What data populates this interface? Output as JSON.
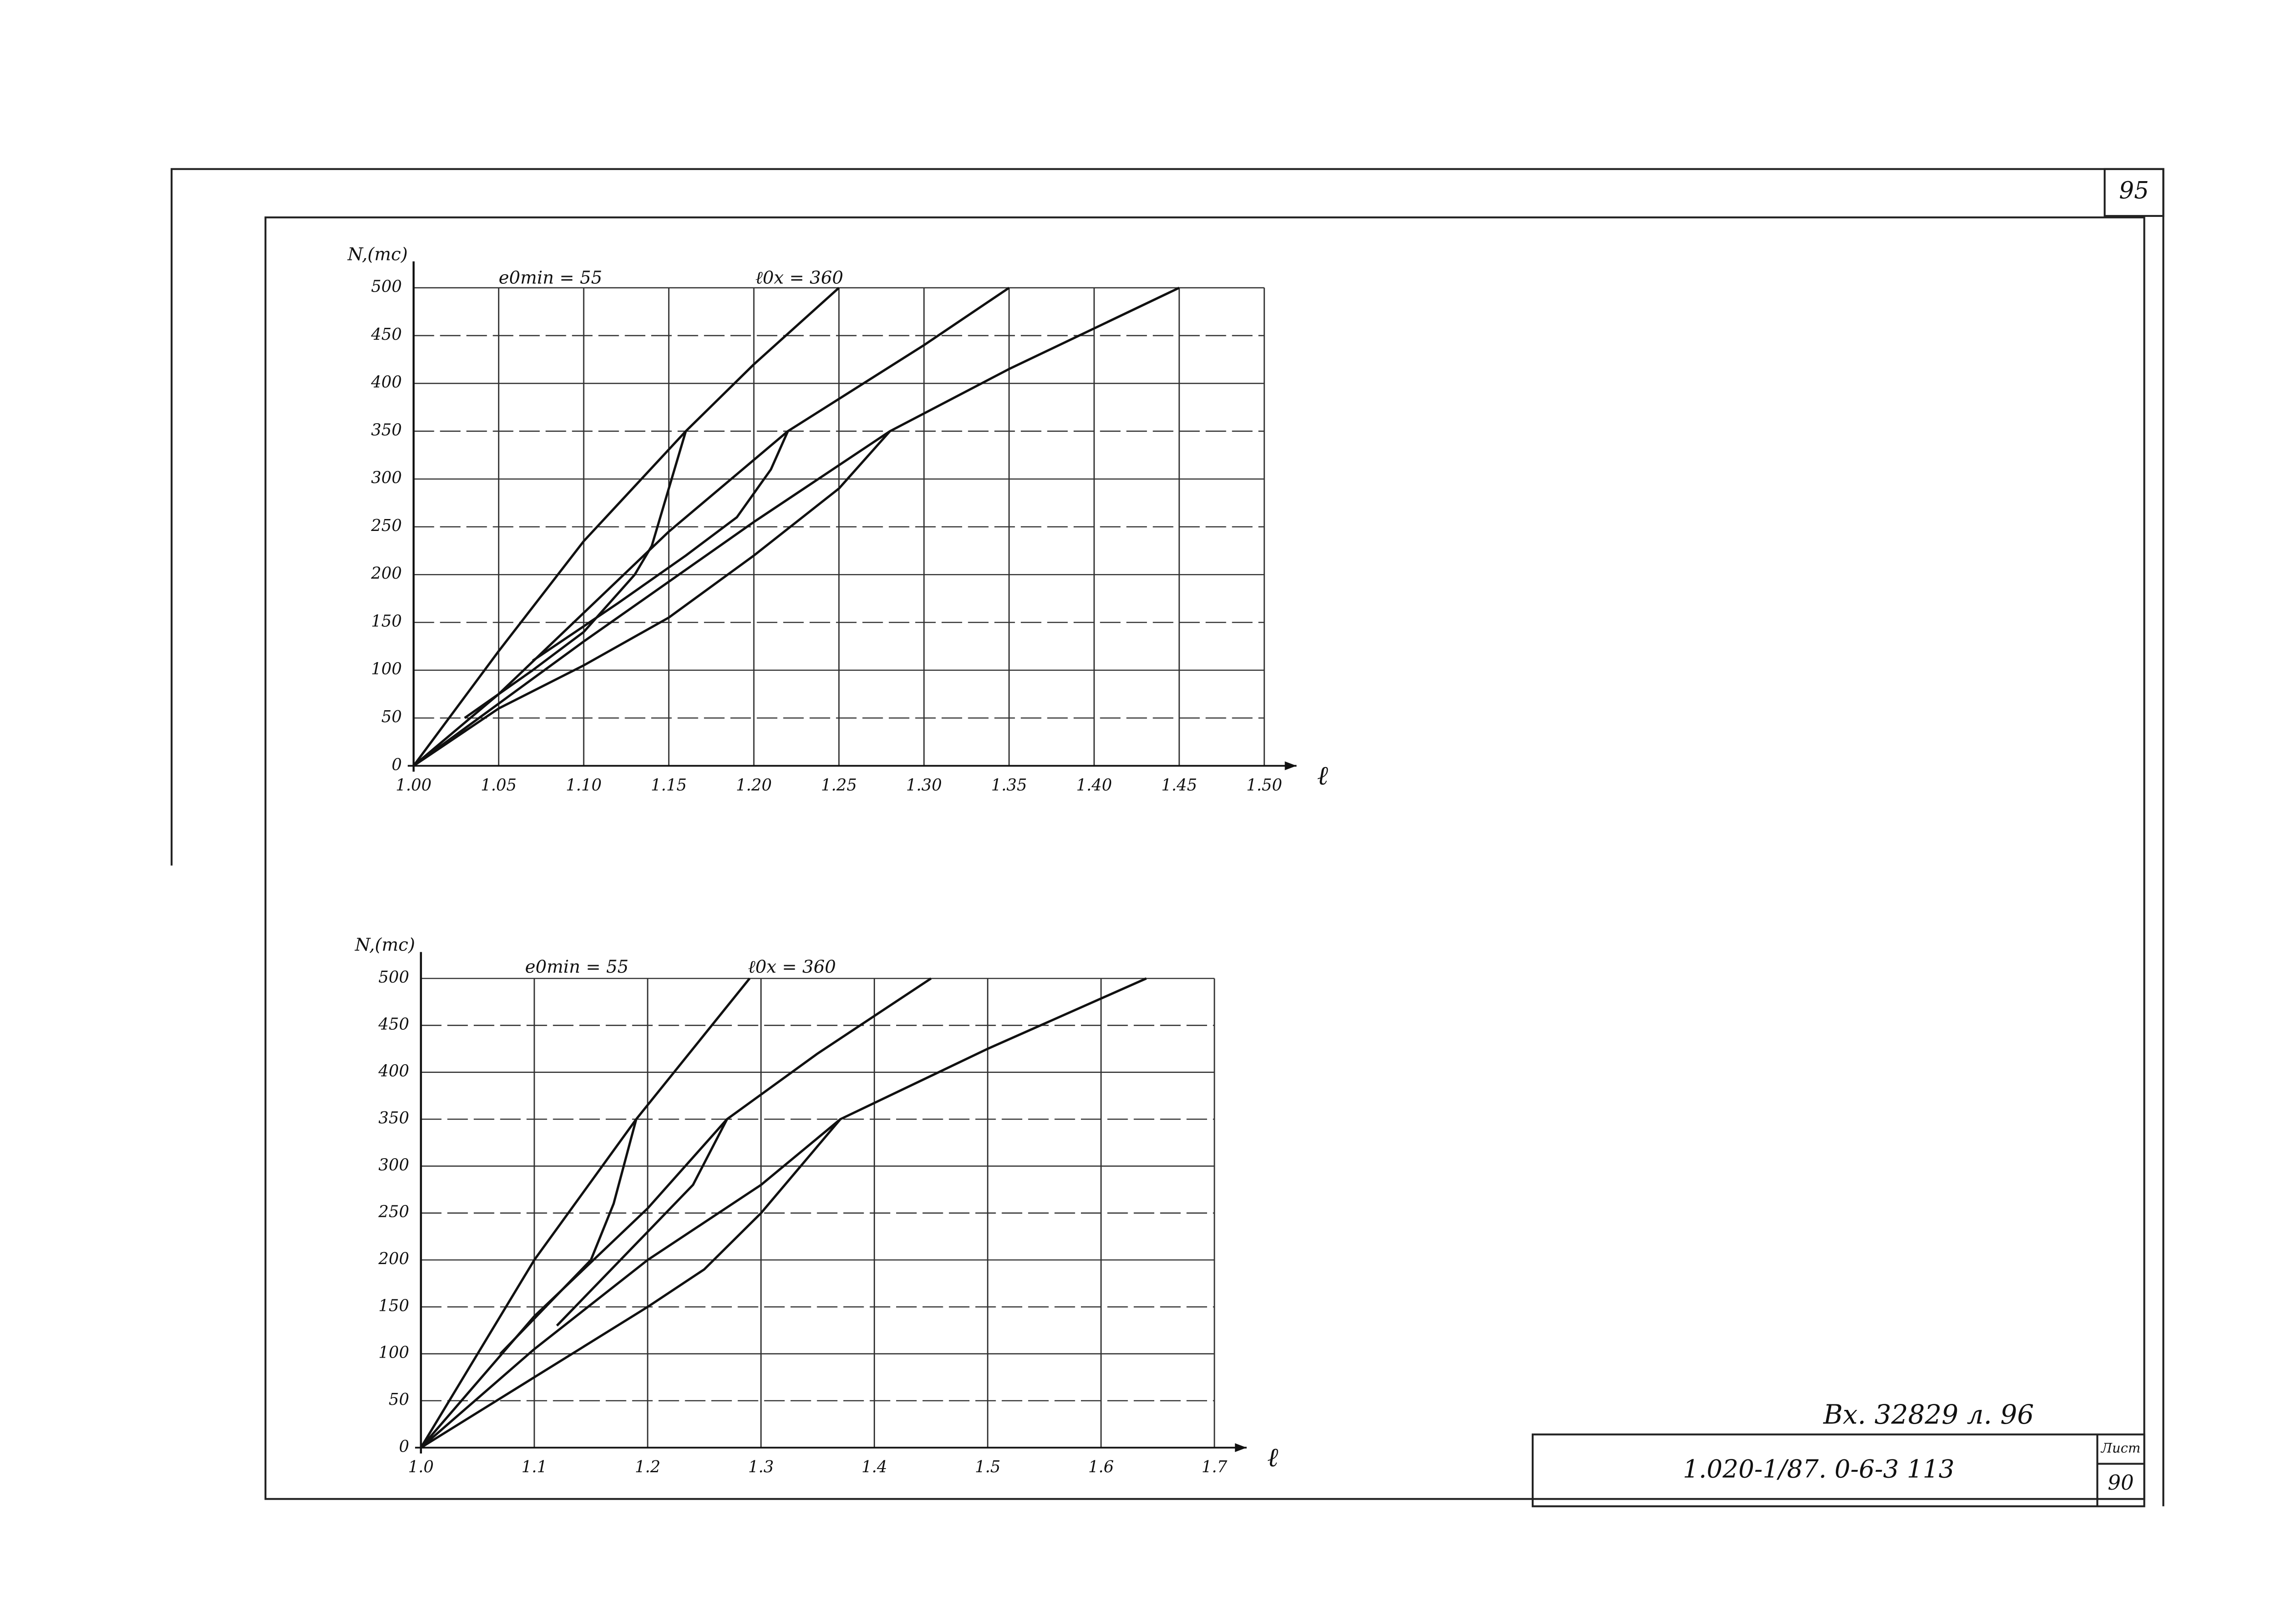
{
  "sheet": {
    "page_number": "95",
    "registration": "Вх. 32829 л. 96",
    "document_code": "1.020-1/87. 0-6-3 113",
    "sheet_label": "Лист",
    "sheet_number": "90"
  },
  "chart_data": [
    {
      "type": "line",
      "y_label": "N,(тс)",
      "x_label": "ℓ",
      "annotations": [
        "e0min = 55",
        "ℓ0x = 360"
      ],
      "xlim": [
        1.0,
        1.5
      ],
      "ylim": [
        0,
        500
      ],
      "grid": true,
      "xticks": [
        {
          "value": 1.0,
          "label": "1.00"
        },
        1.05,
        {
          "value": 1.1,
          "label": "1.10"
        },
        1.15,
        {
          "value": 1.2,
          "label": "1.20"
        },
        1.25,
        {
          "value": 1.3,
          "label": "1.30"
        },
        1.35,
        {
          "value": 1.4,
          "label": "1.40"
        },
        1.45,
        {
          "value": 1.5,
          "label": "1.50"
        }
      ],
      "yticks": [
        0,
        50,
        100,
        150,
        200,
        250,
        300,
        350,
        400,
        450,
        500
      ],
      "series": [
        {
          "color": "#111111",
          "x": [
            1.0,
            1.05,
            1.1,
            1.16,
            1.2,
            1.25
          ],
          "values": [
            0,
            120,
            235,
            350,
            420,
            500
          ]
        },
        {
          "color": "#111111",
          "x": [
            1.0,
            1.05,
            1.1,
            1.15,
            1.22,
            1.3,
            1.35
          ],
          "values": [
            0,
            75,
            160,
            245,
            350,
            440,
            500
          ]
        },
        {
          "color": "#111111",
          "x": [
            1.0,
            1.1,
            1.2,
            1.28,
            1.35,
            1.45
          ],
          "values": [
            0,
            130,
            255,
            350,
            415,
            500
          ]
        },
        {
          "color": "#111111",
          "x": [
            1.0,
            1.05,
            1.1,
            1.15,
            1.2,
            1.25,
            1.28
          ],
          "values": [
            0,
            60,
            105,
            155,
            220,
            290,
            350
          ]
        },
        {
          "color": "#111111",
          "x": [
            1.03,
            1.07,
            1.1,
            1.13,
            1.14,
            1.15,
            1.16
          ],
          "values": [
            50,
            100,
            140,
            200,
            230,
            290,
            350
          ]
        },
        {
          "color": "#111111",
          "x": [
            1.07,
            1.12,
            1.16,
            1.19,
            1.21,
            1.22
          ],
          "values": [
            110,
            170,
            220,
            260,
            310,
            350
          ]
        }
      ]
    },
    {
      "type": "line",
      "y_label": "N,(тс)",
      "x_label": "ℓ",
      "annotations": [
        "e0min = 55",
        "ℓ0x = 360"
      ],
      "xlim": [
        1.0,
        1.7
      ],
      "ylim": [
        0,
        500
      ],
      "grid": true,
      "xticks": [
        {
          "value": 1.0,
          "label": "1.0"
        },
        1.1,
        1.2,
        1.3,
        1.4,
        1.5,
        1.6,
        1.7
      ],
      "yticks": [
        0,
        50,
        100,
        150,
        200,
        250,
        300,
        350,
        400,
        450,
        500
      ],
      "series": [
        {
          "color": "#111111",
          "x": [
            1.0,
            1.1,
            1.19,
            1.29
          ],
          "values": [
            0,
            200,
            350,
            500
          ]
        },
        {
          "color": "#111111",
          "x": [
            1.0,
            1.1,
            1.2,
            1.27,
            1.35,
            1.45
          ],
          "values": [
            0,
            140,
            255,
            350,
            420,
            500
          ]
        },
        {
          "color": "#111111",
          "x": [
            1.0,
            1.1,
            1.2,
            1.3,
            1.37,
            1.5,
            1.64
          ],
          "values": [
            0,
            105,
            200,
            280,
            350,
            425,
            500
          ]
        },
        {
          "color": "#111111",
          "x": [
            1.0,
            1.1,
            1.2,
            1.25,
            1.3,
            1.37
          ],
          "values": [
            0,
            75,
            150,
            190,
            250,
            350
          ]
        },
        {
          "color": "#111111",
          "x": [
            1.07,
            1.11,
            1.15,
            1.17,
            1.19
          ],
          "values": [
            100,
            150,
            200,
            260,
            350
          ]
        },
        {
          "color": "#111111",
          "x": [
            1.12,
            1.2,
            1.24,
            1.27
          ],
          "values": [
            130,
            230,
            280,
            350
          ]
        }
      ]
    }
  ]
}
